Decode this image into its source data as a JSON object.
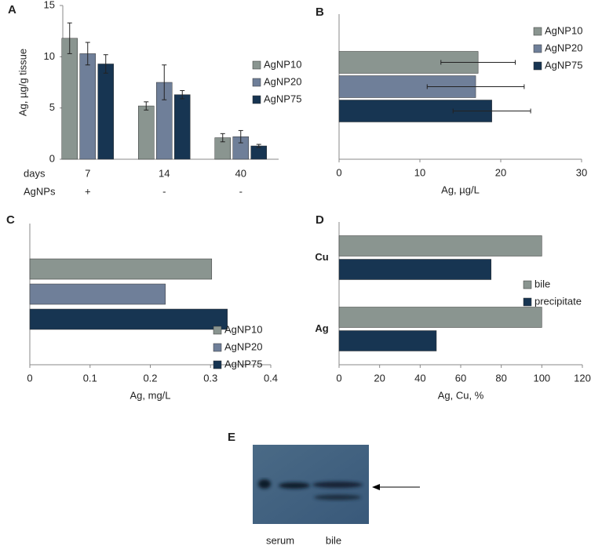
{
  "chart_data": [
    {
      "panel": "A",
      "type": "bar",
      "categories": [
        "7",
        "14",
        "40"
      ],
      "treatment": [
        "+",
        "-",
        "-"
      ],
      "row_labels": [
        "days",
        "AgNPs"
      ],
      "ylabel": "Ag, µg/g tissue",
      "ylim": [
        0,
        15
      ],
      "yticks": [
        0,
        5,
        10,
        15
      ],
      "legend": "right",
      "series": [
        {
          "name": "AgNP10",
          "color": "#8a9590",
          "values": [
            11.8,
            5.2,
            2.1
          ],
          "errors": [
            1.5,
            0.4,
            0.4
          ]
        },
        {
          "name": "AgNP20",
          "color": "#6f7f99",
          "values": [
            10.3,
            7.5,
            2.2
          ],
          "errors": [
            1.1,
            1.7,
            0.6
          ]
        },
        {
          "name": "AgNP75",
          "color": "#173552",
          "values": [
            9.3,
            6.3,
            1.3
          ],
          "errors": [
            0.9,
            0.4,
            0.15
          ]
        }
      ]
    },
    {
      "panel": "B",
      "type": "barh",
      "xlabel": "Ag, µg/L",
      "xlim": [
        0,
        30
      ],
      "xticks": [
        0,
        10,
        20,
        30
      ],
      "legend": "upper right",
      "series": [
        {
          "name": "AgNP10",
          "color": "#8a9590",
          "values": [
            17.2
          ],
          "errors": [
            4.6
          ]
        },
        {
          "name": "AgNP20",
          "color": "#6f7f99",
          "values": [
            16.9
          ],
          "errors": [
            6.0
          ]
        },
        {
          "name": "AgNP75",
          "color": "#173552",
          "values": [
            18.9
          ],
          "errors": [
            4.8
          ]
        }
      ]
    },
    {
      "panel": "C",
      "type": "barh",
      "xlabel": "Ag, mg/L",
      "xlim": [
        0,
        0.4
      ],
      "xticks": [
        0,
        0.1,
        0.2,
        0.3,
        0.4
      ],
      "legend": "lower right",
      "series": [
        {
          "name": "AgNP10",
          "color": "#8a9590",
          "values": [
            0.302
          ]
        },
        {
          "name": "AgNP20",
          "color": "#6f7f99",
          "values": [
            0.225
          ]
        },
        {
          "name": "AgNP75",
          "color": "#173552",
          "values": [
            0.328
          ]
        }
      ]
    },
    {
      "panel": "D",
      "type": "barh",
      "categories": [
        "Cu",
        "Ag"
      ],
      "xlabel": "Ag, Cu, %",
      "xlim": [
        0,
        120
      ],
      "xticks": [
        0,
        20,
        40,
        60,
        80,
        100,
        120
      ],
      "legend": "right",
      "series": [
        {
          "name": "bile",
          "color": "#8a9590",
          "values": [
            100,
            100
          ]
        },
        {
          "name": "precipitate",
          "color": "#173552",
          "values": [
            75,
            48
          ]
        }
      ]
    }
  ],
  "blot": {
    "panel": "E",
    "lanes": [
      "serum",
      "bile"
    ]
  }
}
